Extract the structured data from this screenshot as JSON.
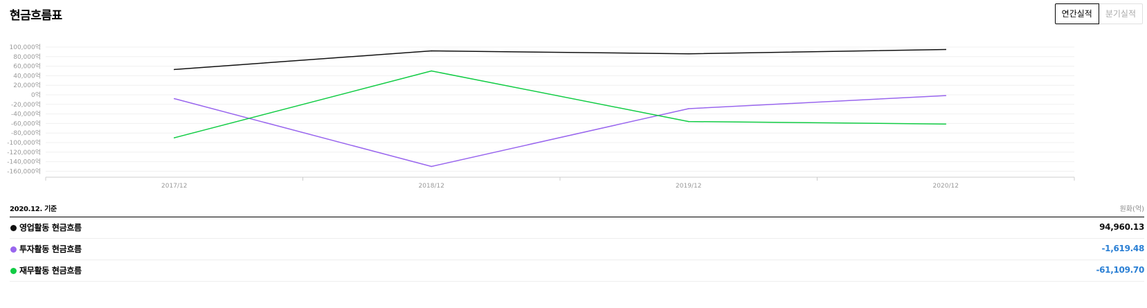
{
  "header": {
    "title": "현금흐름표",
    "tab_annual": "연간실적",
    "tab_quarterly": "분기실적"
  },
  "summary": {
    "base_date": "2020.12. 기준",
    "unit": "원화(억)",
    "rows": [
      {
        "label": "영업활동 현금흐름",
        "value": "94,960.13",
        "color": "#111111",
        "value_color": "#111111"
      },
      {
        "label": "투자활동 현금흐름",
        "value": "-1,619.48",
        "color": "#9966ee",
        "value_color": "#2a7fd4"
      },
      {
        "label": "재무활동 현금흐름",
        "value": "-61,109.70",
        "color": "#11cc44",
        "value_color": "#2a7fd4"
      }
    ]
  },
  "chart_data": {
    "type": "line",
    "x": [
      "2017/12",
      "2018/12",
      "2019/12",
      "2020/12"
    ],
    "yticks": [
      "100,000억",
      "80,000억",
      "60,000억",
      "40,000억",
      "20,000억",
      "0억",
      "-20,000억",
      "-40,000억",
      "-60,000억",
      "-80,000억",
      "-100,000억",
      "-120,000억",
      "-140,000억",
      "-160,000억"
    ],
    "ylim": [
      -160000,
      100000
    ],
    "grid": true,
    "series": [
      {
        "name": "영업활동 현금흐름",
        "color": "#111111",
        "values": [
          53000,
          92000,
          86000,
          94960.13
        ]
      },
      {
        "name": "투자활동 현금흐름",
        "color": "#9966ee",
        "values": [
          -8000,
          -150000,
          -29000,
          -1619.48
        ]
      },
      {
        "name": "재무활동 현금흐름",
        "color": "#11cc44",
        "values": [
          -90000,
          50000,
          -56000,
          -61109.7
        ]
      }
    ]
  }
}
